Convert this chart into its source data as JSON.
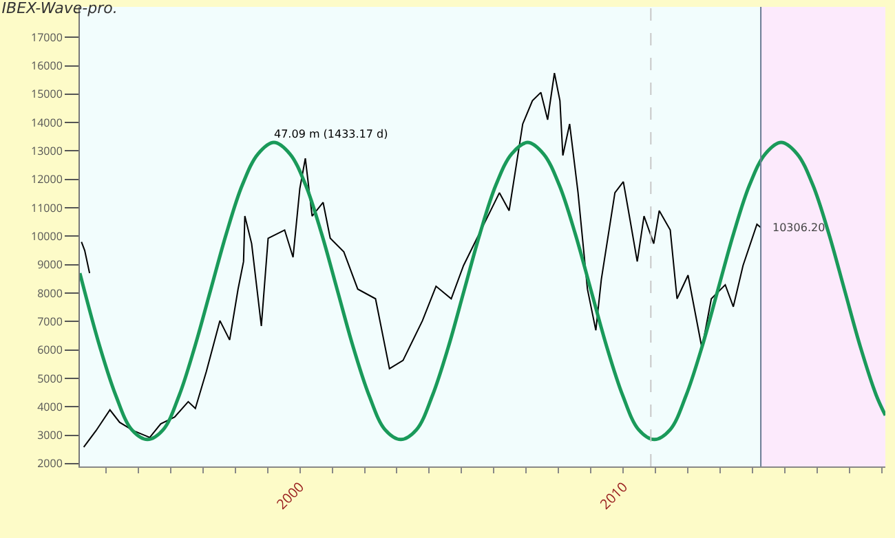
{
  "chart_data": {
    "type": "line",
    "title": "IBEX-Wave-pro.",
    "xlim": [
      1993.2,
      2018.1
    ],
    "ylim": [
      1900,
      18070
    ],
    "xticks": [
      {
        "value": 1994,
        "label": null
      },
      {
        "value": 1995,
        "label": null
      },
      {
        "value": 1996,
        "label": null
      },
      {
        "value": 1997,
        "label": null
      },
      {
        "value": 1998,
        "label": null
      },
      {
        "value": 1999,
        "label": null
      },
      {
        "value": 2000,
        "label": "2000"
      },
      {
        "value": 2001,
        "label": null
      },
      {
        "value": 2002,
        "label": null
      },
      {
        "value": 2003,
        "label": null
      },
      {
        "value": 2004,
        "label": null
      },
      {
        "value": 2005,
        "label": null
      },
      {
        "value": 2006,
        "label": null
      },
      {
        "value": 2007,
        "label": null
      },
      {
        "value": 2008,
        "label": null
      },
      {
        "value": 2009,
        "label": null
      },
      {
        "value": 2010,
        "label": "2010"
      },
      {
        "value": 2011,
        "label": null
      },
      {
        "value": 2012,
        "label": null
      },
      {
        "value": 2013,
        "label": null
      },
      {
        "value": 2014,
        "label": null
      },
      {
        "value": 2015,
        "label": null
      },
      {
        "value": 2016,
        "label": null
      },
      {
        "value": 2017,
        "label": null
      },
      {
        "value": 2018,
        "label": null
      }
    ],
    "yticks": [
      2000,
      3000,
      4000,
      5000,
      6000,
      7000,
      8000,
      9000,
      10000,
      11000,
      12000,
      13000,
      14000,
      15000,
      16000,
      17000
    ],
    "grid": false,
    "marker": "none",
    "series": [
      {
        "color": "#000000",
        "line_style": "solid",
        "x": [
          1993.25,
          1993.35,
          1993.5
        ],
        "values": [
          9800,
          9500,
          8700
        ]
      },
      {
        "color": "#000000",
        "line_style": "solid",
        "x": [
          1993.32,
          1993.7,
          1994.13,
          1994.43,
          1994.85,
          1995.36,
          1995.7,
          1996.13,
          1996.55,
          1996.77,
          1997.11,
          1997.53,
          1997.83,
          1998.09,
          1998.26,
          1998.3,
          1998.51,
          1998.81,
          1999.02,
          1999.53,
          1999.79,
          2000.0,
          2000.17,
          2000.38,
          2000.72,
          2000.94,
          2001.36,
          2001.79,
          2002.34,
          2002.77,
          2003.19,
          2003.79,
          2004.21,
          2004.68,
          2005.06,
          2006.17,
          2006.47,
          2006.89,
          2007.19,
          2007.45,
          2007.66,
          2007.87,
          2008.04,
          2008.13,
          2008.34,
          2008.6,
          2008.89,
          2009.15,
          2009.32,
          2009.74,
          2010.0,
          2010.21,
          2010.43,
          2010.64,
          2010.94,
          2011.11,
          2011.45,
          2011.66,
          2012.0,
          2012.43,
          2012.72,
          2013.15,
          2013.4,
          2013.7,
          2014.13,
          2014.25
        ],
        "values": [
          2580,
          3160,
          3890,
          3450,
          3160,
          2920,
          3400,
          3640,
          4180,
          3940,
          5240,
          7030,
          6350,
          8140,
          9110,
          10710,
          9740,
          6840,
          9930,
          10220,
          9260,
          11680,
          12740,
          10710,
          11190,
          9930,
          9450,
          8140,
          7800,
          5340,
          5630,
          7030,
          8240,
          7800,
          8970,
          11530,
          10900,
          13950,
          14770,
          15060,
          14100,
          15740,
          14770,
          12840,
          13950,
          11530,
          8140,
          6690,
          8480,
          11530,
          11920,
          10560,
          9110,
          10710,
          9740,
          10900,
          10220,
          7800,
          8630,
          6060,
          7800,
          8290,
          7520,
          8970,
          10420,
          10306.2
        ]
      },
      {
        "color": "#1a9a5a",
        "line_style": "solid",
        "x": [
          1993.2,
          1993.82,
          1994.31,
          1994.8,
          1995.29,
          1995.78,
          1996.27,
          1996.75,
          1997.24,
          1997.73,
          1998.22,
          1998.71,
          1999.2,
          1999.69,
          2000.18,
          2000.67,
          2001.16,
          2001.65,
          2002.14,
          2002.63,
          2003.12,
          2003.61,
          2004.1,
          2004.59,
          2005.08,
          2005.57,
          2006.06,
          2006.55,
          2007.04,
          2007.53,
          2008.02,
          2008.51,
          2009.0,
          2009.49,
          2009.98,
          2010.47,
          2010.96,
          2011.45,
          2011.94,
          2012.43,
          2012.92,
          2013.41,
          2013.9,
          2014.39,
          2014.88,
          2015.37,
          2015.86,
          2016.35,
          2016.84,
          2017.33,
          2017.82,
          2018.1
        ],
        "values": [
          8700,
          6100,
          4400,
          3200,
          2850,
          3200,
          4400,
          6100,
          8100,
          10100,
          11800,
          12900,
          13300,
          12900,
          11800,
          10100,
          8100,
          6100,
          4400,
          3200,
          2850,
          3200,
          4400,
          6100,
          8100,
          10100,
          11800,
          12900,
          13300,
          12900,
          11800,
          10100,
          8100,
          6100,
          4400,
          3200,
          2850,
          3200,
          4400,
          6100,
          8100,
          10100,
          11800,
          12900,
          13300,
          12900,
          11800,
          10100,
          8100,
          6100,
          4400,
          3700
        ]
      }
    ],
    "ref_lines": [
      {
        "axis": "x",
        "value": 2010.85,
        "color": "#c8c8c8",
        "line_style": "dashed"
      },
      {
        "axis": "x",
        "value": 2014.25,
        "color": "#6a7c94",
        "line_style": "solid"
      }
    ],
    "bands": [
      {
        "axis": "x",
        "from": 2014.25,
        "to": 2018.1,
        "color": "#fceafc"
      }
    ],
    "annotations": [
      {
        "text": "47.09 m (1433.17 d)",
        "x": 1999.2,
        "y": 13300
      },
      {
        "text": "10306.20",
        "x": 2014.25,
        "y": 10306.2
      }
    ]
  }
}
